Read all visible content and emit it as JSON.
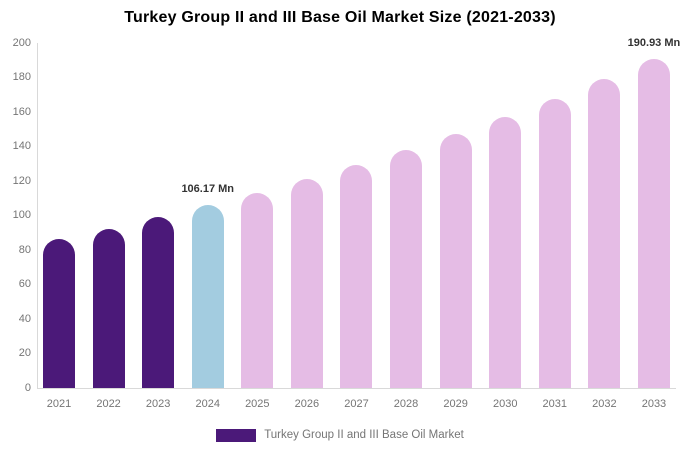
{
  "chart_data": {
    "type": "bar",
    "title": "Turkey Group II and III Base Oil Market Size (2021-2033)",
    "categories": [
      "2021",
      "2022",
      "2023",
      "2024",
      "2025",
      "2026",
      "2027",
      "2028",
      "2029",
      "2030",
      "2031",
      "2032",
      "2033"
    ],
    "values": [
      86.5,
      92.4,
      98.9,
      106.17,
      113.3,
      121.0,
      129.2,
      137.9,
      147.2,
      157.1,
      167.7,
      179.0,
      190.93
    ],
    "unit": "Mn",
    "xlabel": "",
    "ylabel": "",
    "ylim": [
      0,
      200
    ],
    "yticks": [
      0,
      20,
      40,
      60,
      80,
      100,
      120,
      140,
      160,
      180,
      200
    ],
    "grid": false,
    "legend_position": "bottom-center",
    "legend_label": "Turkey Group II and III Base Oil Market",
    "annotations": [
      {
        "category": "2024",
        "text": "106.17 Mn"
      },
      {
        "category": "2033",
        "text": "190.93 Mn"
      }
    ],
    "bar_colors": [
      "#4B1979",
      "#4B1979",
      "#4B1979",
      "#A3CCE0",
      "#E5BCE5",
      "#E5BCE5",
      "#E5BCE5",
      "#E5BCE5",
      "#E5BCE5",
      "#E5BCE5",
      "#E5BCE5",
      "#E5BCE5",
      "#E5BCE5"
    ],
    "colors": {
      "historical_bar": "#4B1979",
      "current_year_bar": "#A3CCE0",
      "forecast_bar": "#E5BCE5",
      "axis_line": "#d9d9d9",
      "tick_label": "#757575",
      "annotation_text": "#333333",
      "title_text": "#000000",
      "legend_text": "#757575",
      "legend_swatch": "#4B1979"
    }
  }
}
